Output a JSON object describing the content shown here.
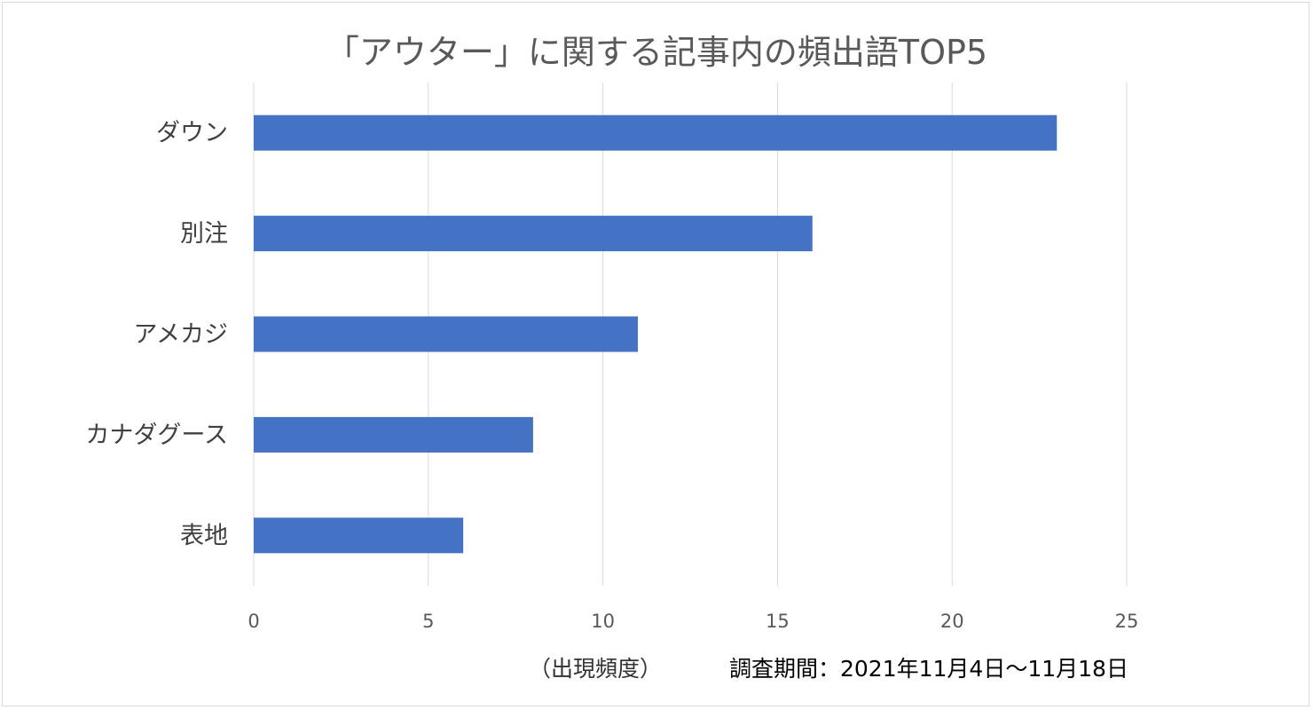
{
  "chart_data": {
    "type": "bar",
    "orientation": "horizontal",
    "title": "「アウター」に関する記事内の頻出語TOP5",
    "categories": [
      "ダウン",
      "別注",
      "アメカジ",
      "カナダグース",
      "表地"
    ],
    "values": [
      23,
      16,
      11,
      8,
      6
    ],
    "xlabel": "（出現頻度）",
    "ylabel": "",
    "xlim": [
      0,
      25
    ],
    "xticks": [
      0,
      5,
      10,
      15,
      20,
      25
    ],
    "grid": true,
    "bar_color": "#4472C4",
    "annotation": "調査期間：2021年11月4日～11月18日"
  }
}
